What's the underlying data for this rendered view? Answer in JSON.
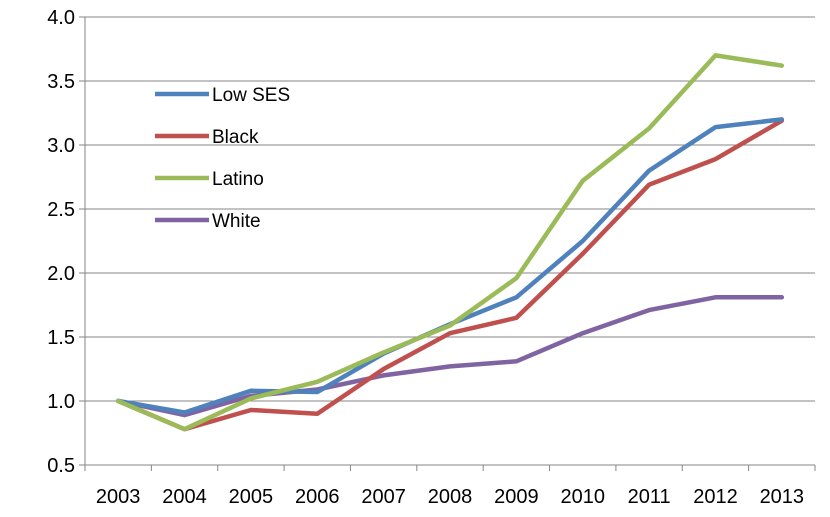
{
  "chart_data": {
    "type": "line",
    "title": "",
    "xlabel": "",
    "ylabel": "",
    "x": [
      "2003",
      "2004",
      "2005",
      "2006",
      "2007",
      "2008",
      "2009",
      "2010",
      "2011",
      "2012",
      "2013"
    ],
    "ylim": [
      0.5,
      4.0
    ],
    "yticks": [
      "0.5",
      "1.0",
      "1.5",
      "2.0",
      "2.5",
      "3.0",
      "3.5",
      "4.0"
    ],
    "grid": true,
    "legend_position": "top-left",
    "series": [
      {
        "name": "Low SES",
        "color": "#4F81BD",
        "values": [
          1.0,
          0.91,
          1.08,
          1.07,
          1.37,
          1.6,
          1.81,
          2.25,
          2.8,
          3.14,
          3.2
        ]
      },
      {
        "name": "Black",
        "color": "#C0504D",
        "values": [
          1.0,
          0.78,
          0.93,
          0.9,
          1.25,
          1.53,
          1.65,
          2.15,
          2.69,
          2.89,
          3.19
        ]
      },
      {
        "name": "Latino",
        "color": "#9BBB59",
        "values": [
          1.0,
          0.78,
          1.02,
          1.15,
          1.38,
          1.59,
          1.96,
          2.72,
          3.13,
          3.7,
          3.62
        ]
      },
      {
        "name": "White",
        "color": "#8064A2",
        "values": [
          1.0,
          0.89,
          1.04,
          1.09,
          1.2,
          1.27,
          1.31,
          1.53,
          1.71,
          1.81,
          1.81
        ]
      }
    ]
  }
}
